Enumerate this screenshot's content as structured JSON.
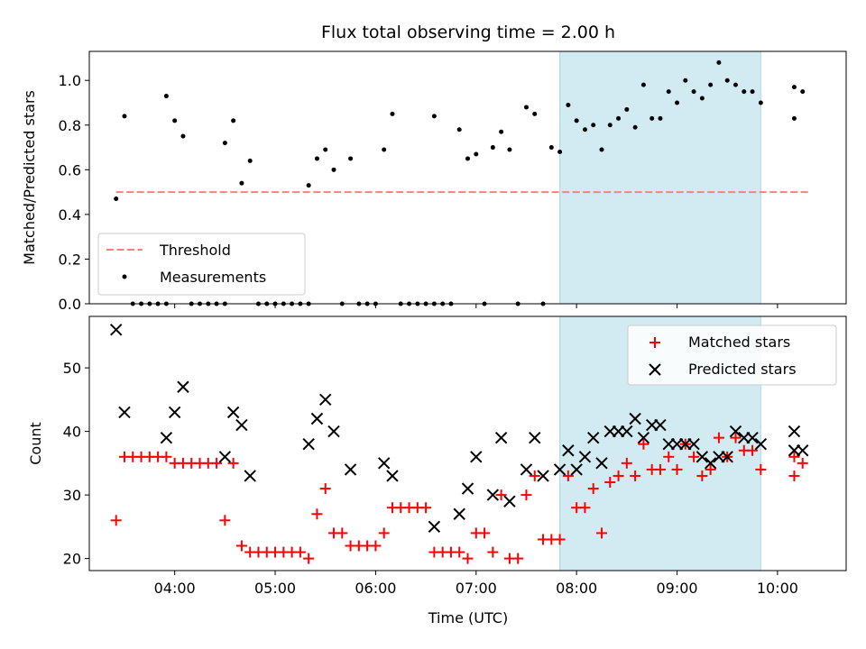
{
  "chart_data": [
    {
      "type": "scatter",
      "title": "Flux total observing time = 2.00 h",
      "ylabel": "Matched/Predicted stars",
      "xlabel": "",
      "ylim": [
        0,
        1.13
      ],
      "xlim": [
        "03:09",
        "10:41"
      ],
      "x_ticks": [
        "04:00",
        "05:00",
        "06:00",
        "07:00",
        "08:00",
        "09:00",
        "10:00"
      ],
      "y_ticks": [
        "0.0",
        "0.2",
        "0.4",
        "0.6",
        "0.8",
        "1.0"
      ],
      "highlight_span": [
        "07:50",
        "09:50"
      ],
      "legend_position": "lower-left",
      "threshold": {
        "name": "Threshold",
        "value": 0.5,
        "x_start": "03:25",
        "x_end": "10:20",
        "color": "#ff7f7f",
        "style": "dashed"
      },
      "series": [
        {
          "name": "Measurements",
          "color": "#000000",
          "marker": "dot",
          "points": [
            [
              "03:25",
              0.47
            ],
            [
              "03:30",
              0.84
            ],
            [
              "03:35",
              0.0
            ],
            [
              "03:40",
              0.0
            ],
            [
              "03:45",
              0.0
            ],
            [
              "03:50",
              0.0
            ],
            [
              "03:55",
              0.0
            ],
            [
              "03:55",
              0.93
            ],
            [
              "04:00",
              0.82
            ],
            [
              "04:05",
              0.75
            ],
            [
              "04:10",
              0.0
            ],
            [
              "04:15",
              0.0
            ],
            [
              "04:20",
              0.0
            ],
            [
              "04:25",
              0.0
            ],
            [
              "04:30",
              0.0
            ],
            [
              "04:30",
              0.72
            ],
            [
              "04:35",
              0.82
            ],
            [
              "04:40",
              0.54
            ],
            [
              "04:45",
              0.64
            ],
            [
              "04:50",
              0.0
            ],
            [
              "04:55",
              0.0
            ],
            [
              "05:00",
              0.0
            ],
            [
              "05:05",
              0.0
            ],
            [
              "05:10",
              0.0
            ],
            [
              "05:15",
              0.0
            ],
            [
              "05:20",
              0.0
            ],
            [
              "05:20",
              0.53
            ],
            [
              "05:25",
              0.65
            ],
            [
              "05:30",
              0.69
            ],
            [
              "05:35",
              0.6
            ],
            [
              "05:40",
              0.0
            ],
            [
              "05:45",
              0.65
            ],
            [
              "05:50",
              0.0
            ],
            [
              "05:55",
              0.0
            ],
            [
              "06:00",
              0.0
            ],
            [
              "06:05",
              0.69
            ],
            [
              "06:10",
              0.85
            ],
            [
              "06:15",
              0.0
            ],
            [
              "06:20",
              0.0
            ],
            [
              "06:25",
              0.0
            ],
            [
              "06:30",
              0.0
            ],
            [
              "06:35",
              0.0
            ],
            [
              "06:35",
              0.84
            ],
            [
              "06:40",
              0.0
            ],
            [
              "06:45",
              0.0
            ],
            [
              "06:50",
              0.78
            ],
            [
              "06:55",
              0.65
            ],
            [
              "07:00",
              0.67
            ],
            [
              "07:05",
              0.0
            ],
            [
              "07:10",
              0.7
            ],
            [
              "07:15",
              0.77
            ],
            [
              "07:20",
              0.69
            ],
            [
              "07:25",
              0.0
            ],
            [
              "07:30",
              0.88
            ],
            [
              "07:35",
              0.85
            ],
            [
              "07:40",
              0.0
            ],
            [
              "07:45",
              0.7
            ],
            [
              "07:50",
              0.68
            ],
            [
              "07:55",
              0.89
            ],
            [
              "08:00",
              0.82
            ],
            [
              "08:05",
              0.78
            ],
            [
              "08:10",
              0.8
            ],
            [
              "08:15",
              0.69
            ],
            [
              "08:20",
              0.8
            ],
            [
              "08:25",
              0.83
            ],
            [
              "08:30",
              0.87
            ],
            [
              "08:35",
              0.79
            ],
            [
              "08:40",
              0.98
            ],
            [
              "08:45",
              0.83
            ],
            [
              "08:50",
              0.83
            ],
            [
              "08:55",
              0.95
            ],
            [
              "09:00",
              0.9
            ],
            [
              "09:05",
              1.0
            ],
            [
              "09:10",
              0.95
            ],
            [
              "09:15",
              0.92
            ],
            [
              "09:20",
              0.98
            ],
            [
              "09:25",
              1.08
            ],
            [
              "09:30",
              1.0
            ],
            [
              "09:35",
              0.98
            ],
            [
              "09:40",
              0.95
            ],
            [
              "09:45",
              0.95
            ],
            [
              "09:50",
              0.9
            ],
            [
              "10:10",
              0.83
            ],
            [
              "10:10",
              0.97
            ],
            [
              "10:15",
              0.95
            ]
          ]
        }
      ]
    },
    {
      "type": "scatter",
      "title": "",
      "xlabel": "Time (UTC)",
      "ylabel": "Count",
      "ylim": [
        18.1,
        58.1
      ],
      "xlim": [
        "03:09",
        "10:41"
      ],
      "x_ticks": [
        "04:00",
        "05:00",
        "06:00",
        "07:00",
        "08:00",
        "09:00",
        "10:00"
      ],
      "y_ticks": [
        "20",
        "30",
        "40",
        "50"
      ],
      "highlight_span": [
        "07:50",
        "09:50"
      ],
      "legend_position": "top-right",
      "series": [
        {
          "name": "Matched stars",
          "color": "#ff0000",
          "marker": "plus",
          "points": [
            [
              "03:25",
              26
            ],
            [
              "03:30",
              36
            ],
            [
              "03:35",
              36
            ],
            [
              "03:40",
              36
            ],
            [
              "03:45",
              36
            ],
            [
              "03:50",
              36
            ],
            [
              "03:55",
              36
            ],
            [
              "04:00",
              35
            ],
            [
              "04:05",
              35
            ],
            [
              "04:10",
              35
            ],
            [
              "04:15",
              35
            ],
            [
              "04:20",
              35
            ],
            [
              "04:25",
              35
            ],
            [
              "04:30",
              26
            ],
            [
              "04:35",
              35
            ],
            [
              "04:40",
              22
            ],
            [
              "04:45",
              21
            ],
            [
              "04:50",
              21
            ],
            [
              "04:55",
              21
            ],
            [
              "05:00",
              21
            ],
            [
              "05:05",
              21
            ],
            [
              "05:10",
              21
            ],
            [
              "05:15",
              21
            ],
            [
              "05:20",
              20
            ],
            [
              "05:25",
              27
            ],
            [
              "05:30",
              31
            ],
            [
              "05:35",
              24
            ],
            [
              "05:40",
              24
            ],
            [
              "05:45",
              22
            ],
            [
              "05:50",
              22
            ],
            [
              "05:55",
              22
            ],
            [
              "06:00",
              22
            ],
            [
              "06:05",
              24
            ],
            [
              "06:10",
              28
            ],
            [
              "06:15",
              28
            ],
            [
              "06:20",
              28
            ],
            [
              "06:25",
              28
            ],
            [
              "06:30",
              28
            ],
            [
              "06:35",
              21
            ],
            [
              "06:40",
              21
            ],
            [
              "06:45",
              21
            ],
            [
              "06:50",
              21
            ],
            [
              "06:55",
              20
            ],
            [
              "07:00",
              24
            ],
            [
              "07:05",
              24
            ],
            [
              "07:10",
              21
            ],
            [
              "07:15",
              30
            ],
            [
              "07:20",
              20
            ],
            [
              "07:25",
              20
            ],
            [
              "07:30",
              30
            ],
            [
              "07:35",
              33
            ],
            [
              "07:40",
              23
            ],
            [
              "07:45",
              23
            ],
            [
              "07:50",
              23
            ],
            [
              "07:55",
              33
            ],
            [
              "08:00",
              28
            ],
            [
              "08:05",
              28
            ],
            [
              "08:10",
              31
            ],
            [
              "08:15",
              24
            ],
            [
              "08:20",
              32
            ],
            [
              "08:25",
              33
            ],
            [
              "08:30",
              35
            ],
            [
              "08:35",
              33
            ],
            [
              "08:40",
              38
            ],
            [
              "08:45",
              34
            ],
            [
              "08:50",
              34
            ],
            [
              "08:55",
              36
            ],
            [
              "09:00",
              34
            ],
            [
              "09:05",
              38
            ],
            [
              "09:10",
              36
            ],
            [
              "09:15",
              33
            ],
            [
              "09:20",
              34
            ],
            [
              "09:25",
              39
            ],
            [
              "09:30",
              36
            ],
            [
              "09:35",
              39
            ],
            [
              "09:40",
              37
            ],
            [
              "09:45",
              37
            ],
            [
              "09:50",
              34
            ],
            [
              "10:10",
              33
            ],
            [
              "10:10",
              36
            ],
            [
              "10:15",
              35
            ]
          ]
        },
        {
          "name": "Predicted stars",
          "color": "#000000",
          "marker": "x",
          "points": [
            [
              "03:25",
              56
            ],
            [
              "03:30",
              43
            ],
            [
              "03:55",
              39
            ],
            [
              "04:00",
              43
            ],
            [
              "04:05",
              47
            ],
            [
              "04:30",
              36
            ],
            [
              "04:35",
              43
            ],
            [
              "04:40",
              41
            ],
            [
              "04:45",
              33
            ],
            [
              "05:20",
              38
            ],
            [
              "05:25",
              42
            ],
            [
              "05:30",
              45
            ],
            [
              "05:35",
              40
            ],
            [
              "05:45",
              34
            ],
            [
              "06:05",
              35
            ],
            [
              "06:10",
              33
            ],
            [
              "06:35",
              25
            ],
            [
              "06:50",
              27
            ],
            [
              "06:55",
              31
            ],
            [
              "07:00",
              36
            ],
            [
              "07:10",
              30
            ],
            [
              "07:15",
              39
            ],
            [
              "07:20",
              29
            ],
            [
              "07:30",
              34
            ],
            [
              "07:35",
              39
            ],
            [
              "07:40",
              33
            ],
            [
              "07:50",
              34
            ],
            [
              "07:55",
              37
            ],
            [
              "08:00",
              34
            ],
            [
              "08:05",
              36
            ],
            [
              "08:10",
              39
            ],
            [
              "08:15",
              35
            ],
            [
              "08:20",
              40
            ],
            [
              "08:25",
              40
            ],
            [
              "08:30",
              40
            ],
            [
              "08:35",
              42
            ],
            [
              "08:40",
              39
            ],
            [
              "08:45",
              41
            ],
            [
              "08:50",
              41
            ],
            [
              "08:55",
              38
            ],
            [
              "09:00",
              38
            ],
            [
              "09:05",
              38
            ],
            [
              "09:10",
              38
            ],
            [
              "09:15",
              36
            ],
            [
              "09:20",
              35
            ],
            [
              "09:25",
              36
            ],
            [
              "09:30",
              36
            ],
            [
              "09:35",
              40
            ],
            [
              "09:40",
              39
            ],
            [
              "09:45",
              39
            ],
            [
              "09:50",
              38
            ],
            [
              "10:10",
              40
            ],
            [
              "10:10",
              37
            ],
            [
              "10:15",
              37
            ]
          ]
        }
      ]
    }
  ]
}
